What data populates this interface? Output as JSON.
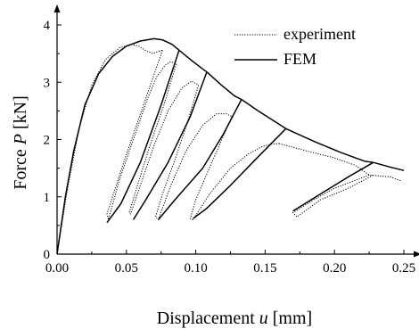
{
  "chart_data": {
    "type": "line",
    "title": "",
    "xlabel_prefix": "Displacement ",
    "xlabel_var": "u",
    "xlabel_unit": " [mm]",
    "ylabel_prefix": "Force ",
    "ylabel_var": "P",
    "ylabel_unit": " [kN]",
    "xlim": [
      0,
      0.25
    ],
    "ylim": [
      0,
      4
    ],
    "xticks": [
      "0.00",
      "0.05",
      "0.10",
      "0.15",
      "0.20",
      "0.25"
    ],
    "yticks": [
      "0",
      "1",
      "2",
      "3",
      "4"
    ],
    "legend_position": "top-right",
    "grid": false,
    "series": [
      {
        "name": "experiment",
        "style": "dotted",
        "segments": [
          [
            [
              0,
              0
            ],
            [
              0.008,
              1.2
            ],
            [
              0.016,
              2.2
            ],
            [
              0.025,
              2.95
            ],
            [
              0.035,
              3.4
            ],
            [
              0.045,
              3.6
            ],
            [
              0.053,
              3.66
            ],
            [
              0.059,
              3.63
            ],
            [
              0.064,
              3.55
            ],
            [
              0.069,
              3.5
            ],
            [
              0.072,
              3.53
            ],
            [
              0.076,
              3.56
            ]
          ],
          [
            [
              0.076,
              3.56
            ],
            [
              0.068,
              3.0
            ],
            [
              0.058,
              2.3
            ],
            [
              0.048,
              1.6
            ],
            [
              0.04,
              1.0
            ],
            [
              0.036,
              0.7
            ],
            [
              0.037,
              0.6
            ],
            [
              0.045,
              1.3
            ],
            [
              0.055,
              2.0
            ],
            [
              0.065,
              2.7
            ],
            [
              0.072,
              3.1
            ],
            [
              0.078,
              3.3
            ],
            [
              0.082,
              3.36
            ],
            [
              0.086,
              3.32
            ]
          ],
          [
            [
              0.086,
              3.32
            ],
            [
              0.077,
              2.6
            ],
            [
              0.067,
              1.9
            ],
            [
              0.058,
              1.2
            ],
            [
              0.052,
              0.72
            ],
            [
              0.053,
              0.7
            ],
            [
              0.06,
              1.2
            ],
            [
              0.07,
              1.9
            ],
            [
              0.08,
              2.5
            ],
            [
              0.09,
              2.9
            ],
            [
              0.097,
              3.02
            ],
            [
              0.102,
              2.95
            ]
          ],
          [
            [
              0.102,
              2.95
            ],
            [
              0.094,
              2.3
            ],
            [
              0.085,
              1.65
            ],
            [
              0.076,
              1.05
            ],
            [
              0.071,
              0.65
            ],
            [
              0.073,
              0.6
            ],
            [
              0.082,
              1.2
            ],
            [
              0.093,
              1.8
            ],
            [
              0.105,
              2.25
            ],
            [
              0.115,
              2.45
            ],
            [
              0.122,
              2.45
            ],
            [
              0.126,
              2.4
            ]
          ],
          [
            [
              0.126,
              2.4
            ],
            [
              0.117,
              1.9
            ],
            [
              0.108,
              1.4
            ],
            [
              0.1,
              0.95
            ],
            [
              0.096,
              0.62
            ],
            [
              0.098,
              0.6
            ],
            [
              0.11,
              1.05
            ],
            [
              0.125,
              1.5
            ],
            [
              0.138,
              1.75
            ],
            [
              0.148,
              1.88
            ],
            [
              0.155,
              1.92
            ],
            [
              0.16,
              1.93
            ]
          ],
          [
            [
              0.16,
              1.93
            ],
            [
              0.18,
              1.8
            ],
            [
              0.2,
              1.68
            ],
            [
              0.215,
              1.55
            ],
            [
              0.225,
              1.38
            ],
            [
              0.24,
              1.35
            ],
            [
              0.248,
              1.28
            ]
          ],
          [
            [
              0.225,
              1.38
            ],
            [
              0.2,
              1.15
            ],
            [
              0.185,
              0.95
            ],
            [
              0.17,
              0.72
            ],
            [
              0.173,
              0.65
            ],
            [
              0.19,
              0.95
            ],
            [
              0.21,
              1.15
            ],
            [
              0.228,
              1.38
            ]
          ]
        ]
      },
      {
        "name": "FEM",
        "style": "solid",
        "segments": [
          [
            [
              0,
              0
            ],
            [
              0.006,
              1.0
            ],
            [
              0.012,
              1.8
            ],
            [
              0.02,
              2.6
            ],
            [
              0.03,
              3.15
            ],
            [
              0.04,
              3.45
            ],
            [
              0.05,
              3.63
            ],
            [
              0.06,
              3.72
            ],
            [
              0.07,
              3.76
            ],
            [
              0.076,
              3.74
            ],
            [
              0.083,
              3.66
            ],
            [
              0.088,
              3.56
            ]
          ],
          [
            [
              0.088,
              3.56
            ],
            [
              0.075,
              2.6
            ],
            [
              0.06,
              1.6
            ],
            [
              0.046,
              0.88
            ],
            [
              0.036,
              0.55
            ]
          ],
          [
            [
              0.088,
              3.56
            ],
            [
              0.096,
              3.4
            ],
            [
              0.104,
              3.25
            ],
            [
              0.108,
              3.18
            ]
          ],
          [
            [
              0.108,
              3.18
            ],
            [
              0.096,
              2.4
            ],
            [
              0.08,
              1.6
            ],
            [
              0.064,
              0.95
            ],
            [
              0.055,
              0.6
            ]
          ],
          [
            [
              0.108,
              3.18
            ],
            [
              0.118,
              2.96
            ],
            [
              0.128,
              2.76
            ],
            [
              0.133,
              2.7
            ]
          ],
          [
            [
              0.133,
              2.7
            ],
            [
              0.12,
              2.1
            ],
            [
              0.105,
              1.5
            ],
            [
              0.085,
              0.95
            ],
            [
              0.073,
              0.6
            ]
          ],
          [
            [
              0.133,
              2.7
            ],
            [
              0.145,
              2.5
            ],
            [
              0.158,
              2.3
            ],
            [
              0.165,
              2.19
            ]
          ],
          [
            [
              0.165,
              2.19
            ],
            [
              0.145,
              1.7
            ],
            [
              0.125,
              1.2
            ],
            [
              0.108,
              0.8
            ],
            [
              0.098,
              0.62
            ]
          ],
          [
            [
              0.165,
              2.19
            ],
            [
              0.185,
              1.97
            ],
            [
              0.205,
              1.77
            ],
            [
              0.222,
              1.62
            ],
            [
              0.228,
              1.6
            ]
          ],
          [
            [
              0.228,
              1.6
            ],
            [
              0.21,
              1.35
            ],
            [
              0.19,
              1.05
            ],
            [
              0.17,
              0.75
            ]
          ],
          [
            [
              0.228,
              1.6
            ],
            [
              0.24,
              1.52
            ],
            [
              0.25,
              1.46
            ]
          ]
        ]
      }
    ]
  }
}
